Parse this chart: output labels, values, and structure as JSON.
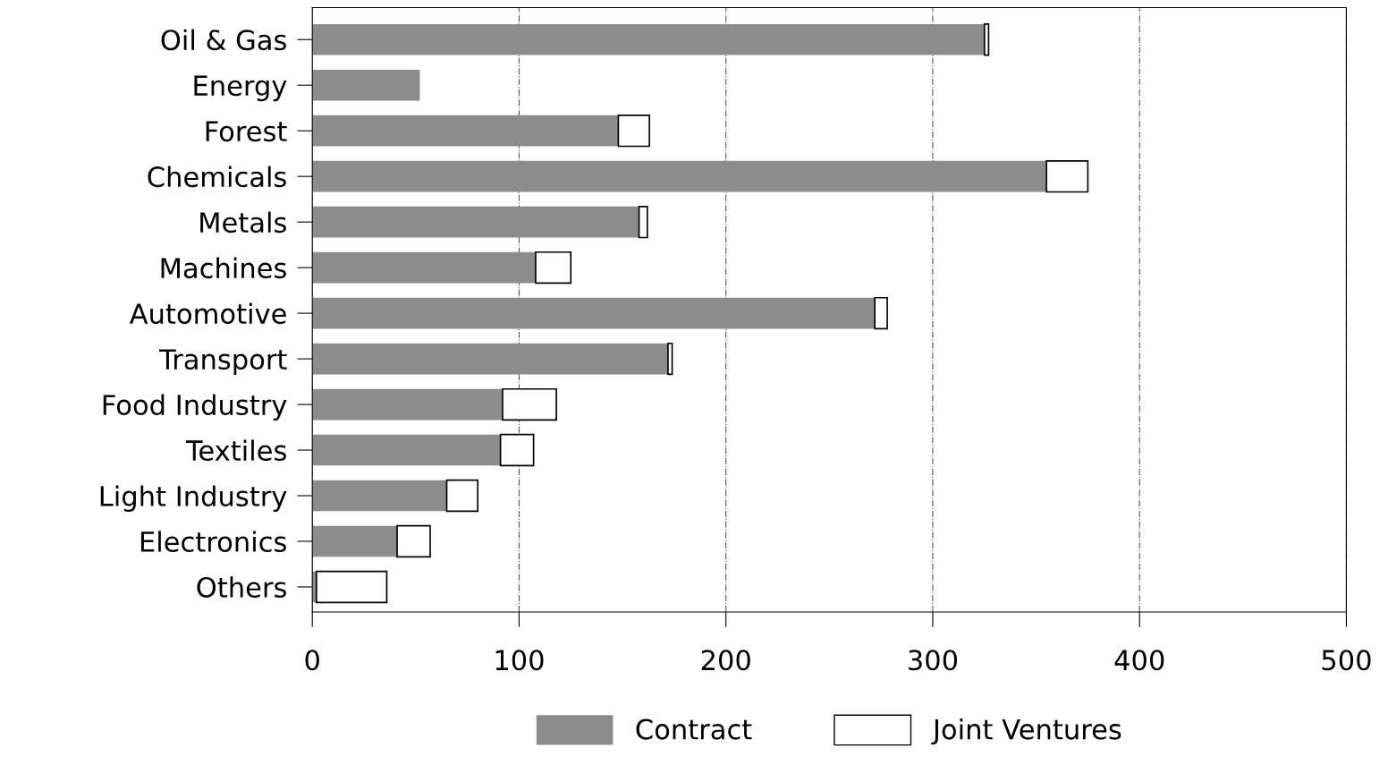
{
  "chart_data": {
    "type": "bar",
    "orientation": "horizontal",
    "stacked": true,
    "categories": [
      "Oil & Gas",
      "Energy",
      "Forest",
      "Chemicals",
      "Metals",
      "Machines",
      "Automotive",
      "Transport",
      "Food Industry",
      "Textiles",
      "Light Industry",
      "Electronics",
      "Others"
    ],
    "series": [
      {
        "name": "Contract",
        "color": "#8c8c8c",
        "values": [
          325,
          52,
          148,
          355,
          158,
          108,
          272,
          172,
          92,
          91,
          65,
          41,
          2
        ]
      },
      {
        "name": "Joint Ventures",
        "color": "#ffffff",
        "values": [
          2,
          null,
          15,
          20,
          4,
          17,
          6,
          2,
          26,
          16,
          15,
          16,
          34
        ]
      }
    ],
    "xlim": [
      0,
      500
    ],
    "xticks": [
      0,
      100,
      200,
      300,
      400,
      500
    ],
    "grid": "x",
    "legend": "bottom"
  }
}
